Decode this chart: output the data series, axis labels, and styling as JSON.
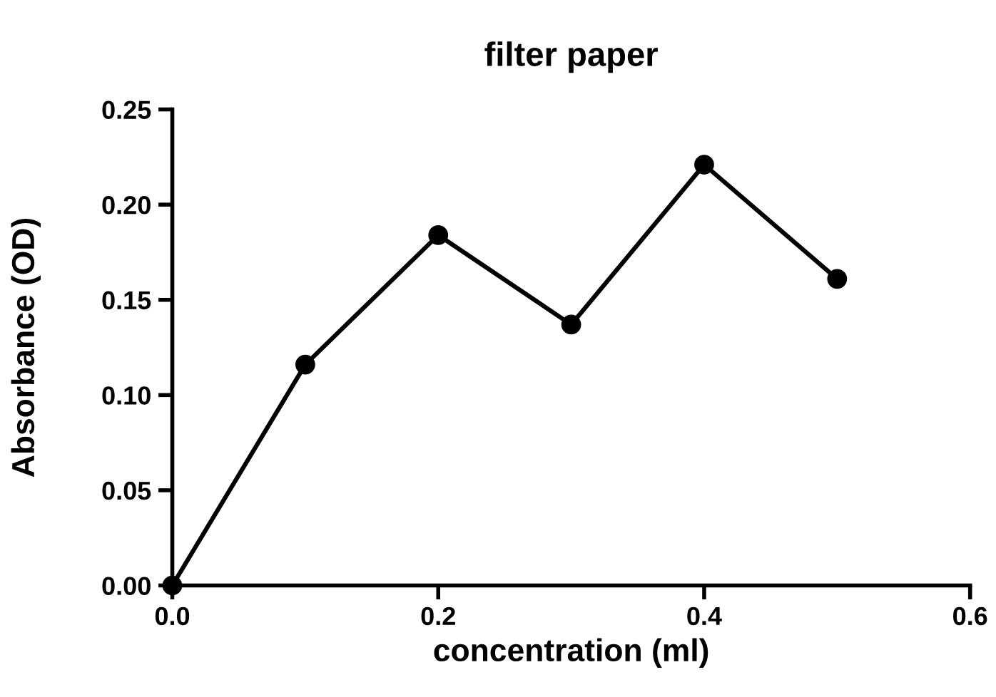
{
  "chart_data": {
    "type": "line",
    "title": "filter paper",
    "xlabel": "concentration (ml)",
    "ylabel": "Absorbance (OD)",
    "x": [
      0.0,
      0.1,
      0.2,
      0.3,
      0.4,
      0.5
    ],
    "series": [
      {
        "color": "#000000",
        "values": [
          0.0,
          0.116,
          0.184,
          0.137,
          0.221,
          0.161
        ]
      }
    ],
    "xlim": [
      0.0,
      0.6
    ],
    "xticks": [
      {
        "value": 0.0,
        "label": "0.0"
      },
      {
        "value": 0.2,
        "label": "0.2"
      },
      {
        "value": 0.4,
        "label": "0.4"
      },
      {
        "value": 0.6,
        "label": "0.6"
      }
    ],
    "ylim": [
      0.0,
      0.25
    ],
    "yticks": [
      {
        "value": 0.0,
        "label": "0.00"
      },
      {
        "value": 0.05,
        "label": "0.05"
      },
      {
        "value": 0.1,
        "label": "0.10"
      },
      {
        "value": 0.15,
        "label": "0.15"
      },
      {
        "value": 0.2,
        "label": "0.20"
      },
      {
        "value": 0.25,
        "label": "0.25"
      }
    ],
    "marker": "circle",
    "line_style": "solid",
    "grid": false
  }
}
